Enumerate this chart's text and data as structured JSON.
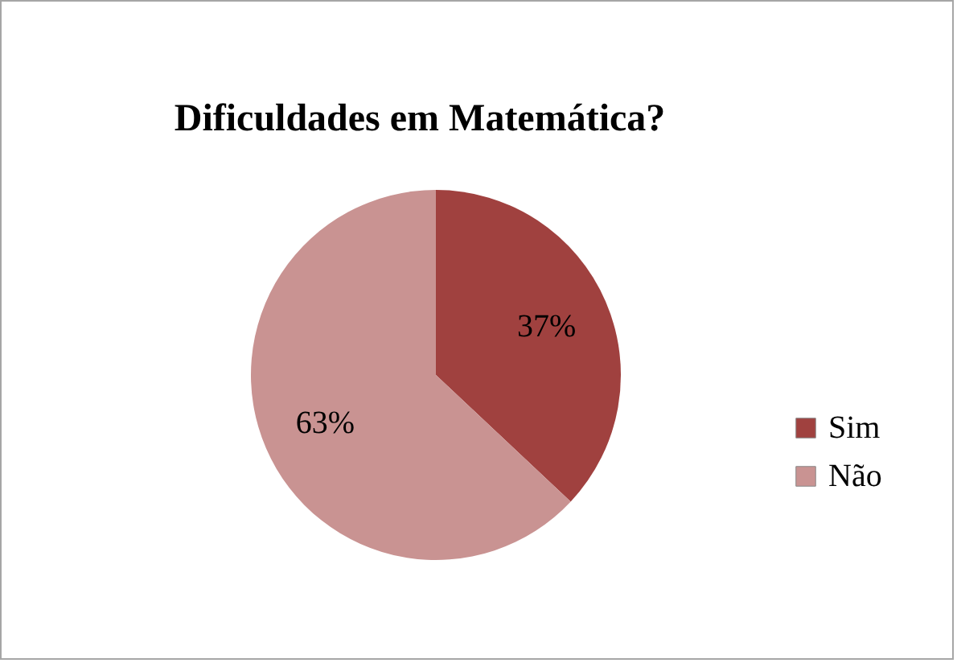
{
  "chart_data": {
    "type": "pie",
    "title": "Dificuldades em Matemática?",
    "categories": [
      "Sim",
      "Não"
    ],
    "values": [
      37,
      63
    ],
    "value_labels": [
      "37%",
      "63%"
    ],
    "colors": [
      "#a0413f",
      "#c99392"
    ],
    "legend": "right"
  }
}
